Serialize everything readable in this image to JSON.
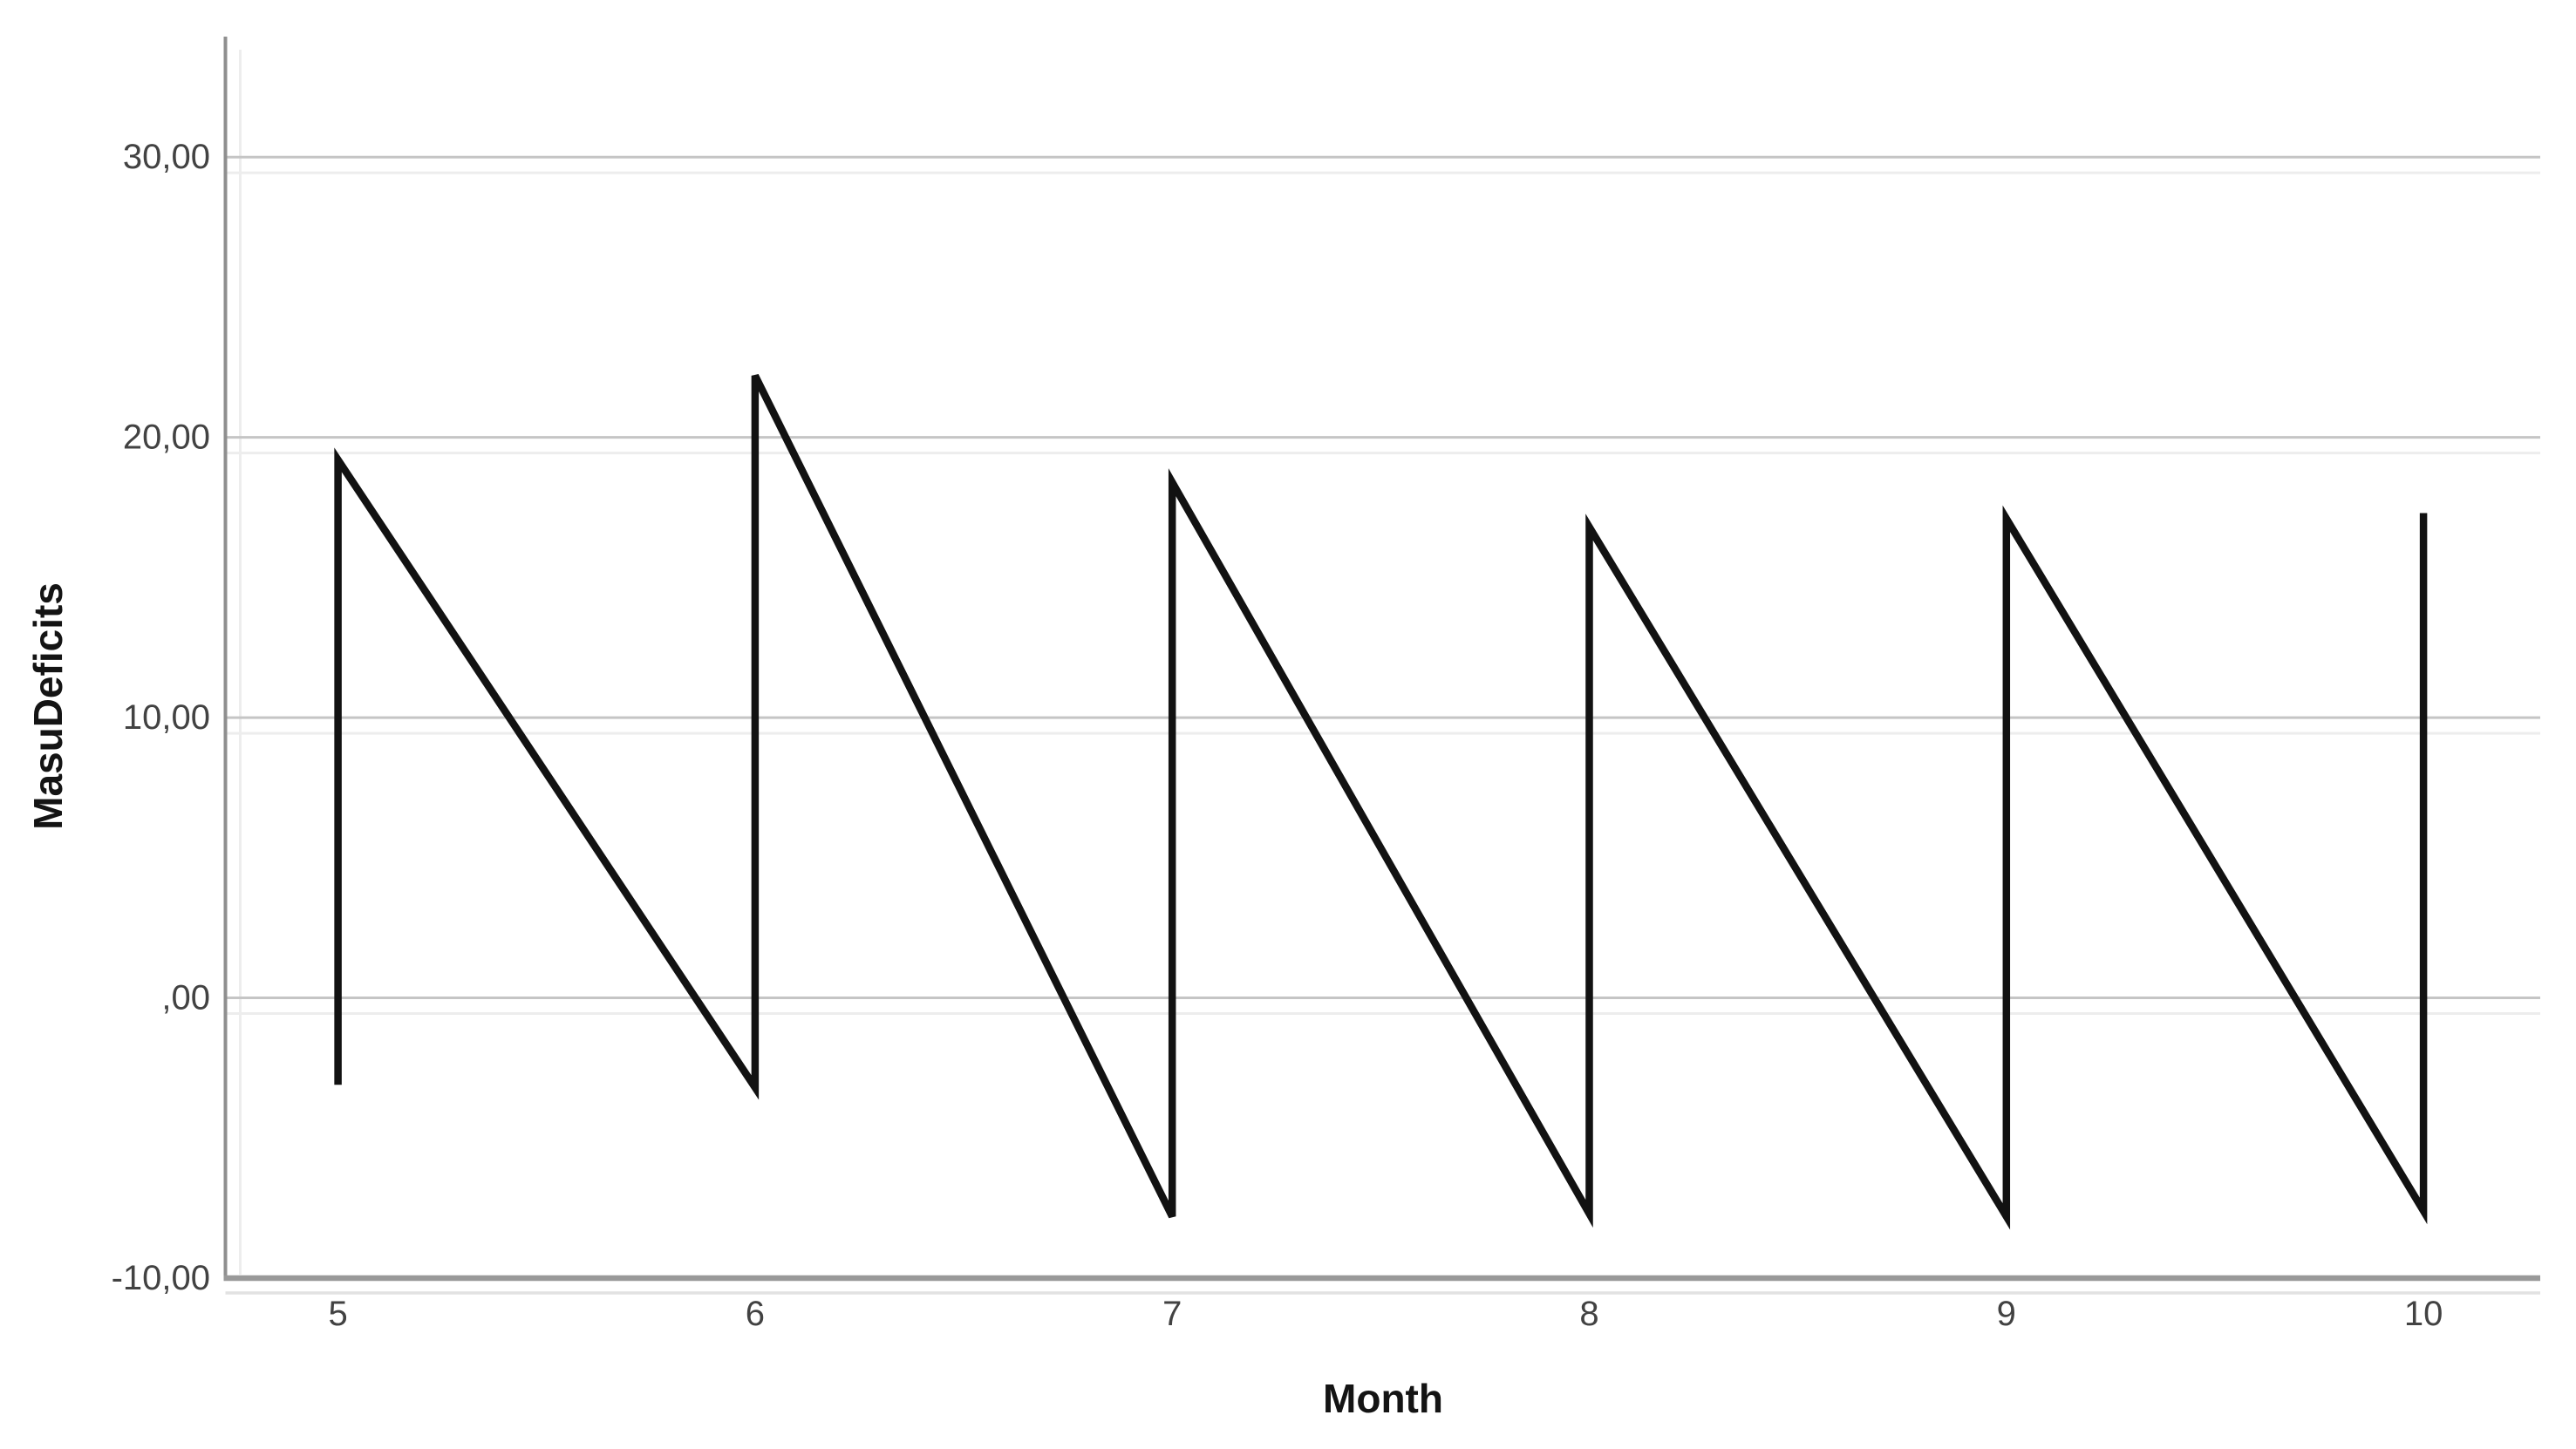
{
  "chart_data": {
    "type": "line",
    "title": "",
    "xlabel": "Month",
    "ylabel": "MasuDeficits",
    "grid": true,
    "legend": false,
    "xlim": [
      4.73,
      10.28
    ],
    "ylim": [
      -10,
      34.3
    ],
    "y_gridline_values": [
      30,
      20,
      10,
      0
    ],
    "x_ticks": [
      {
        "label": "5",
        "value": 5
      },
      {
        "label": "6",
        "value": 6
      },
      {
        "label": "7",
        "value": 7
      },
      {
        "label": "8",
        "value": 8
      },
      {
        "label": "9",
        "value": 9
      },
      {
        "label": "10",
        "value": 10
      }
    ],
    "y_ticks": [
      {
        "label": "30,00",
        "value": 30
      },
      {
        "label": "20,00",
        "value": 20
      },
      {
        "label": "10,00",
        "value": 10
      },
      {
        "label": ",00",
        "value": 0
      },
      {
        "label": "-10,00",
        "value": -10
      }
    ],
    "series": [
      {
        "name": "MasuDeficits",
        "points": [
          {
            "x": 5,
            "y": -3.1
          },
          {
            "x": 5,
            "y": 19.2
          },
          {
            "x": 6,
            "y": -3.2
          },
          {
            "x": 6,
            "y": 22.2
          },
          {
            "x": 7,
            "y": -7.8
          },
          {
            "x": 7,
            "y": 18.4
          },
          {
            "x": 8,
            "y": -7.7
          },
          {
            "x": 8,
            "y": 16.8
          },
          {
            "x": 9,
            "y": -7.8
          },
          {
            "x": 9,
            "y": 17.1
          },
          {
            "x": 10,
            "y": -7.6
          },
          {
            "x": 10,
            "y": 17.3
          }
        ]
      }
    ]
  },
  "colors": {
    "background": "#ffffff",
    "line": "#121212",
    "gridline": "#c5c5c5",
    "gridline_ghost": "#ededed",
    "axis_y": "#8f8f8f",
    "axis_x": "#999999",
    "axis_ghost": "#e2e2e2",
    "tick_label": "#424242",
    "axis_title": "#141414"
  }
}
